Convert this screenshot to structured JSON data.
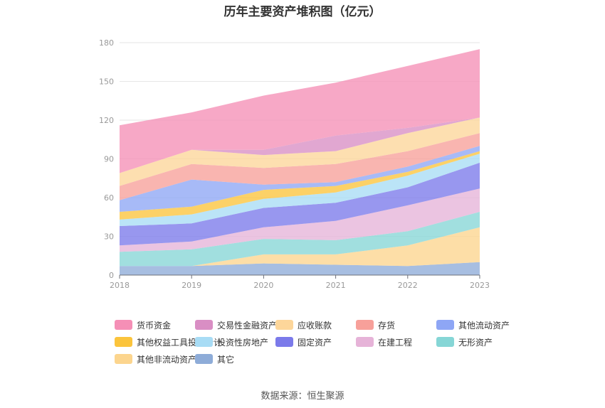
{
  "page": {
    "title": "历年主要资产堆积图（亿元）",
    "source": "数据来源：恒生聚源"
  },
  "chart_data": {
    "type": "area",
    "stacked": true,
    "title": "历年主要资产堆积图（亿元）",
    "x": [
      "2018",
      "2019",
      "2020",
      "2021",
      "2022",
      "2023"
    ],
    "ylim": [
      0,
      180
    ],
    "yticks": [
      0,
      30,
      60,
      90,
      120,
      150,
      180
    ],
    "grid": true,
    "legend_position": "bottom",
    "series": [
      {
        "name": "其它",
        "color": "#8eacd8",
        "values": [
          7,
          7,
          9,
          8,
          7,
          10
        ]
      },
      {
        "name": "其他非流动资产",
        "color": "#fcd58e",
        "values": [
          0,
          0,
          7,
          8,
          16,
          27
        ]
      },
      {
        "name": "无形资产",
        "color": "#86d6d6",
        "values": [
          11,
          13,
          12,
          11,
          11,
          12
        ]
      },
      {
        "name": "在建工程",
        "color": "#e6b3d8",
        "values": [
          5,
          6,
          9,
          15,
          20,
          18
        ]
      },
      {
        "name": "固定资产",
        "color": "#7b7aea",
        "values": [
          15,
          14,
          15,
          14,
          14,
          20
        ]
      },
      {
        "name": "投资性房地产",
        "color": "#a8dcf5",
        "values": [
          5,
          7,
          7,
          8,
          9,
          7
        ]
      },
      {
        "name": "其他权益工具投资合计",
        "color": "#fbc43c",
        "values": [
          6,
          6,
          7,
          5,
          3,
          2
        ]
      },
      {
        "name": "其他流动资产",
        "color": "#8ea6f5",
        "values": [
          9,
          21,
          4,
          3,
          4,
          4
        ]
      },
      {
        "name": "存货",
        "color": "#f7a09a",
        "values": [
          11,
          12,
          13,
          14,
          12,
          10
        ]
      },
      {
        "name": "应收账款",
        "color": "#fdd69a",
        "values": [
          10,
          11,
          10,
          10,
          14,
          12
        ]
      },
      {
        "name": "交易性金融资产",
        "color": "#d98ec4",
        "values": [
          0,
          0,
          4,
          12,
          4,
          0
        ]
      },
      {
        "name": "货币资金",
        "color": "#f58fb6",
        "values": [
          37,
          29,
          42,
          41,
          48,
          53
        ]
      }
    ],
    "legend_order": [
      "货币资金",
      "交易性金融资产",
      "应收账款",
      "存货",
      "其他流动资产",
      "其他权益工具投资合计",
      "投资性房地产",
      "固定资产",
      "在建工程",
      "无形资产",
      "其他非流动资产",
      "其它"
    ]
  }
}
